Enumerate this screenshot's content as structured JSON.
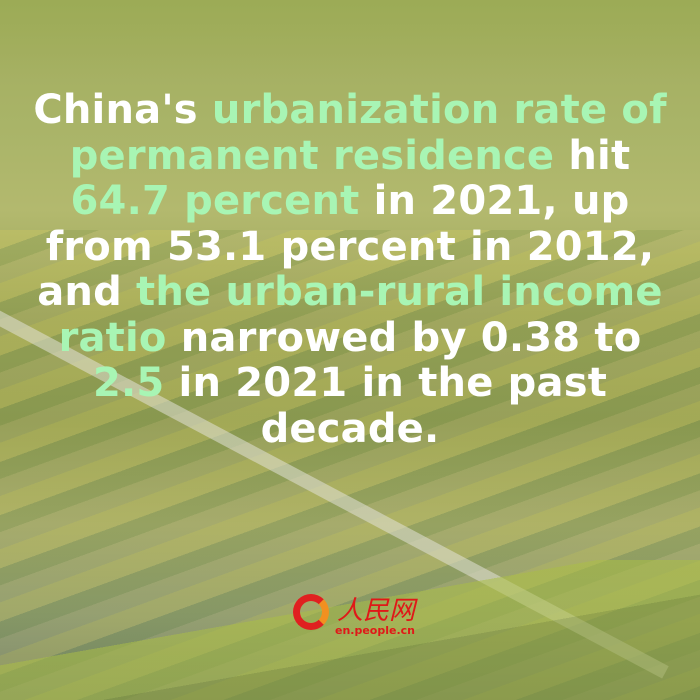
{
  "headline": {
    "p1": "China's ",
    "h1": "urbanization rate of permanent residence",
    "p2": " hit ",
    "h2": "64.7 percent",
    "p3": " in 2021, up from 53.1 percent in 2012, and ",
    "h3": "the urban-rural income ratio",
    "p4": " narrowed by 0.38 to ",
    "h4": "2.5",
    "p5": " in 2021 in the past decade."
  },
  "colors": {
    "text": "#ffffff",
    "highlight": "#a8f5b4",
    "logo": "#e01818"
  },
  "logo": {
    "chinese": "人民网",
    "url": "en.people.cn"
  }
}
